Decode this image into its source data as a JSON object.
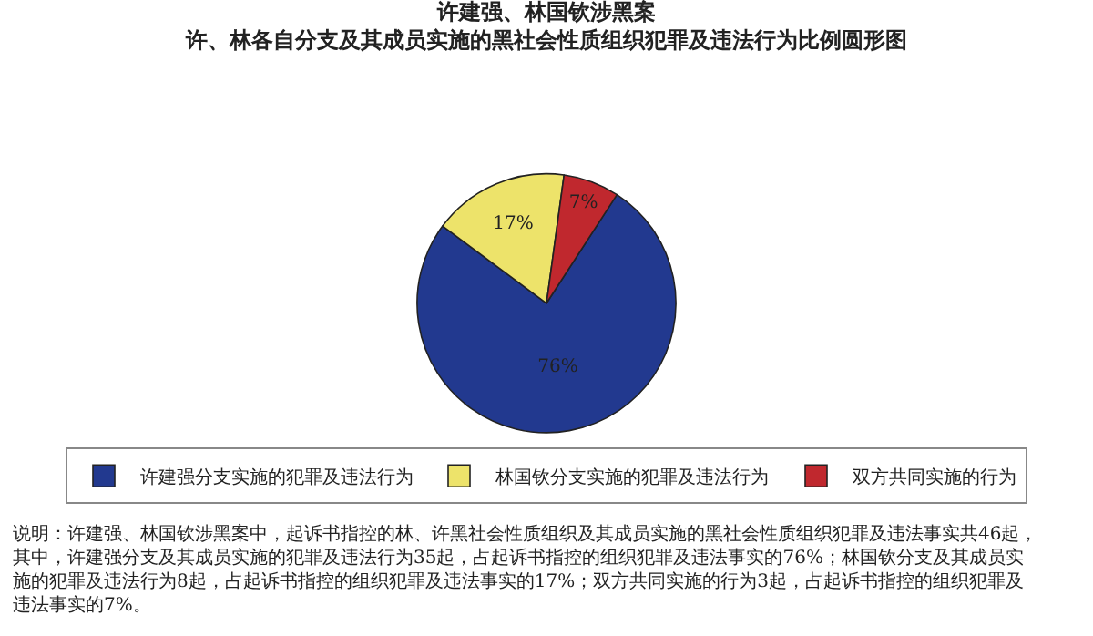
{
  "chart_data": {
    "type": "pie",
    "title": "许建强、林国钦涉黑案",
    "subtitle": "许、林各自分支及其成员实施的黑社会性质组织犯罪及违法行为比例圆形图",
    "categories": [
      "许建强分支实施的犯罪及违法行为",
      "林国钦分支实施的犯罪及违法行为",
      "双方共同实施的行为"
    ],
    "values": [
      76,
      17,
      7
    ],
    "colors": [
      "#22398f",
      "#ede36a",
      "#c0282e"
    ],
    "value_labels": [
      "76%",
      "17%",
      "7%"
    ],
    "legend": "bottom",
    "annotations": [
      "说明：许建强、林国钦涉黑案中，起诉书指控的林、许黑社会性质组织及其成员实施的黑社会性质组织犯罪及违法事实共46起，其中，许建强分支及其成员实施的犯罪及违法行为35起，占起诉书指控的组织犯罪及违法事实的76%；林国钦分支及其成员实施的犯罪及违法行为8起，占起诉书指控的组织犯罪及违法事实的17%；双方共同实施的行为3起，占起诉书指控的组织犯罪及违法事实的7%。"
    ]
  }
}
